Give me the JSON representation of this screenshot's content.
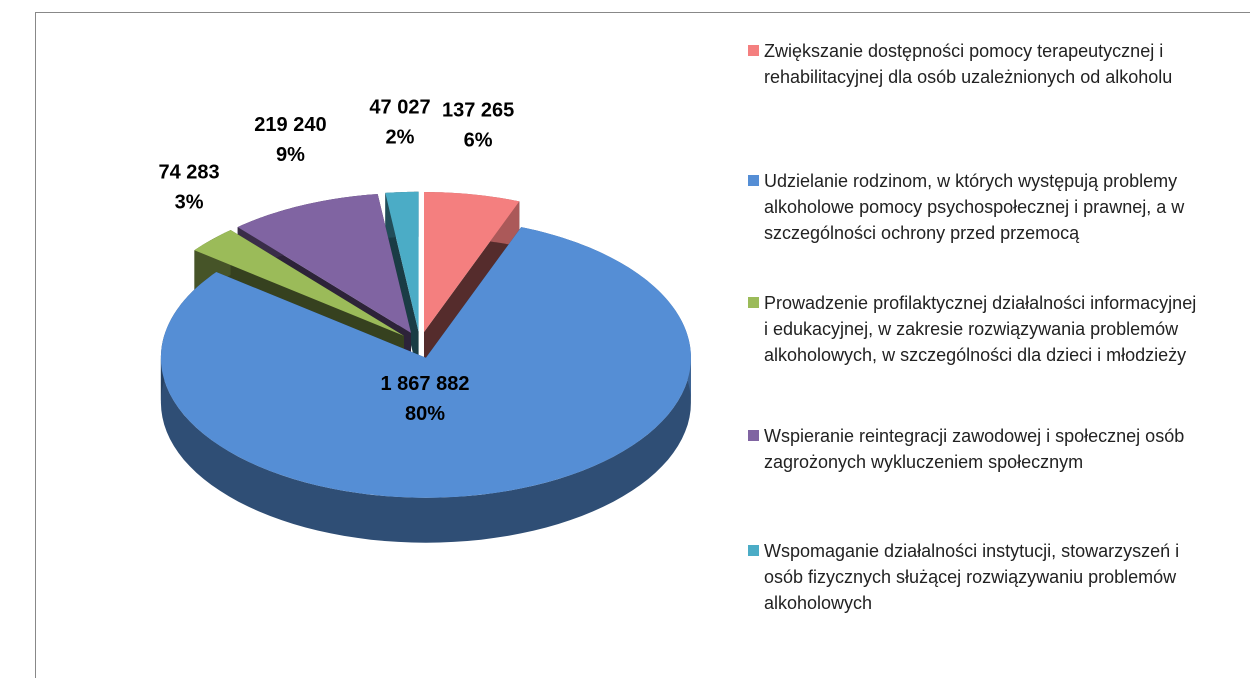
{
  "chart_data": {
    "type": "pie3d",
    "categories": [
      "Zwiększanie dostępności pomocy terapeutycznej i rehabilitacyjnej dla osób uzależnionych od alkoholu",
      "Udzielanie rodzinom, w których występują problemy alkoholowe pomocy psychospołecznej i prawnej, a w szczególności ochrony przed przemocą",
      "Prowadzenie profilaktycznej działalności informacyjnej i edukacyjnej, w zakresie rozwiązywania problemów alkoholowych, w szczególności dla dzieci i młodzieży",
      "Wspieranie reintegracji zawodowej i społecznej osób zagrożonych wykluczeniem społecznym",
      "Wspomaganie działalności instytucji, stowarzyszeń i osób fizycznych służącej rozwiązywaniu problemów alkoholowych"
    ],
    "values": [
      137265,
      1867882,
      74283,
      219240,
      47027
    ],
    "value_labels": [
      "137 265",
      "1 867 882",
      "74 283",
      "219 240",
      "47 027"
    ],
    "percent_labels": [
      "6%",
      "80%",
      "3%",
      "9%",
      "2%"
    ],
    "colors": [
      "#f47f7f",
      "#558ed5",
      "#9bbb59",
      "#8064a2",
      "#4bacc6"
    ],
    "legend": "right"
  }
}
